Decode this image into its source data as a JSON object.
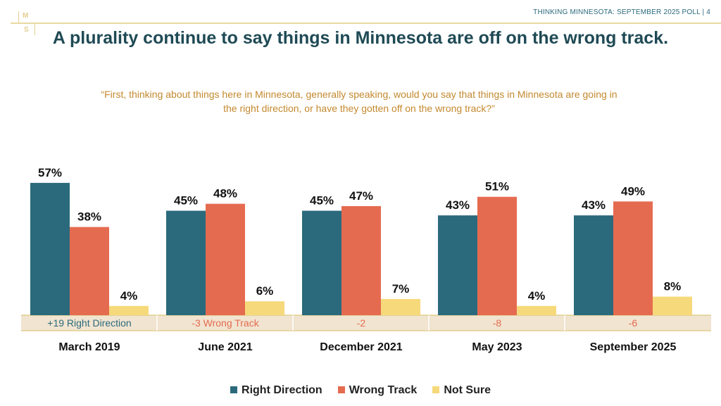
{
  "header": {
    "logo": "MS",
    "running_title": "THINKING MINNESOTA: SEPTEMBER 2025 POLL  |  4"
  },
  "title": "A plurality continue to say things in Minnesota are off on the wrong track.",
  "question": "“First, thinking about things here in Minnesota, generally speaking, would you say that things in Minnesota are going in the right direction, or have they gotten off on the wrong track?”",
  "chart_data": {
    "type": "bar",
    "categories": [
      "March 2019",
      "June 2021",
      "December 2021",
      "May 2023",
      "September 2025"
    ],
    "series": [
      {
        "name": "Right Direction",
        "color": "#2b6a7c",
        "values": [
          57,
          45,
          45,
          43,
          43
        ]
      },
      {
        "name": "Wrong Track",
        "color": "#e56b50",
        "values": [
          38,
          48,
          47,
          51,
          49
        ]
      },
      {
        "name": "Not Sure",
        "color": "#f6d97a",
        "values": [
          4,
          6,
          7,
          4,
          8
        ]
      }
    ],
    "net_labels": [
      {
        "text": "+19 Right Direction",
        "color": "#2b6a7c"
      },
      {
        "text": "-3 Wrong Track",
        "color": "#e56b50"
      },
      {
        "text": "-2",
        "color": "#e56b50"
      },
      {
        "text": "-8",
        "color": "#e56b50"
      },
      {
        "text": "-6",
        "color": "#e56b50"
      }
    ],
    "value_suffix": "%",
    "ylim": [
      0,
      60
    ],
    "legend": "bottom"
  }
}
